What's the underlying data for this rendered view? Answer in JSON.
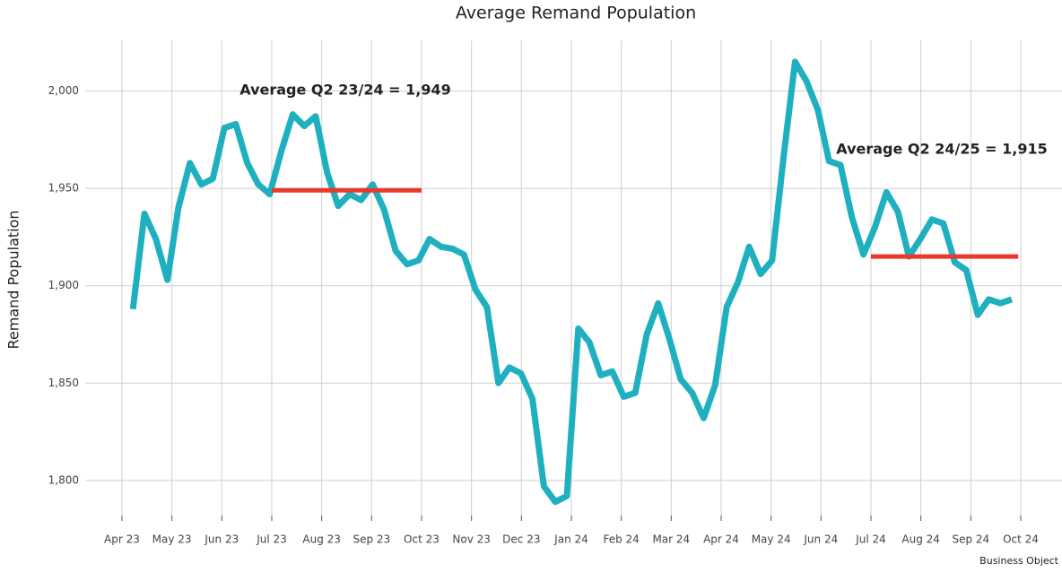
{
  "chart_data": {
    "type": "line",
    "title": "Average Remand Population",
    "y_label": "Remand Population",
    "source": "Business Object",
    "grid": true,
    "xlim": [
      -0.4,
      18.3
    ],
    "xticks": [
      {
        "value": 0,
        "label": "Apr 23"
      },
      {
        "value": 1,
        "label": "May 23"
      },
      {
        "value": 2,
        "label": "Jun 23"
      },
      {
        "value": 3,
        "label": "Jul 23"
      },
      {
        "value": 4,
        "label": "Aug 23"
      },
      {
        "value": 5,
        "label": "Sep 23"
      },
      {
        "value": 6,
        "label": "Oct 23"
      },
      {
        "value": 7,
        "label": "Nov 23"
      },
      {
        "value": 8,
        "label": "Dec 23"
      },
      {
        "value": 9,
        "label": "Jan 24"
      },
      {
        "value": 10,
        "label": "Feb 24"
      },
      {
        "value": 11,
        "label": "Mar 24"
      },
      {
        "value": 12,
        "label": "Apr 24"
      },
      {
        "value": 13,
        "label": "May 24"
      },
      {
        "value": 14,
        "label": "Jun 24"
      },
      {
        "value": 15,
        "label": "Jul 24"
      },
      {
        "value": 16,
        "label": "Aug 24"
      },
      {
        "value": 17,
        "label": "Sep 24"
      },
      {
        "value": 18,
        "label": "Oct 24"
      }
    ],
    "ylim": [
      1782,
      2026
    ],
    "yticks": [
      {
        "value": 1800,
        "label": "1,800"
      },
      {
        "value": 1850,
        "label": "1,850"
      },
      {
        "value": 1900,
        "label": "1,900"
      },
      {
        "value": 1950,
        "label": "1,950"
      },
      {
        "value": 2000,
        "label": "2,000"
      }
    ],
    "series": [
      {
        "color": "#1fb0c0",
        "x": [
          0.22,
          0.45,
          0.68,
          0.91,
          1.13,
          1.36,
          1.59,
          1.82,
          2.05,
          2.28,
          2.51,
          2.73,
          2.96,
          3.19,
          3.42,
          3.65,
          3.88,
          4.11,
          4.33,
          4.56,
          4.79,
          5.02,
          5.25,
          5.48,
          5.71,
          5.94,
          6.16,
          6.39,
          6.62,
          6.85,
          7.08,
          7.31,
          7.54,
          7.76,
          7.99,
          8.22,
          8.45,
          8.68,
          8.91,
          9.14,
          9.36,
          9.59,
          9.82,
          10.05,
          10.28,
          10.51,
          10.74,
          10.96,
          11.19,
          11.42,
          11.65,
          11.88,
          12.11,
          12.34,
          12.56,
          12.79,
          13.02,
          13.25,
          13.48,
          13.71,
          13.94,
          14.16,
          14.39,
          14.62,
          14.85,
          15.08,
          15.31,
          15.54,
          15.76,
          15.99,
          16.22,
          16.45,
          16.68,
          16.91,
          17.14,
          17.36,
          17.59,
          17.82
        ],
        "values": [
          1888,
          1937,
          1924,
          1903,
          1940,
          1963,
          1952,
          1955,
          1981,
          1983,
          1963,
          1952,
          1947,
          1969,
          1988,
          1982,
          1987,
          1958,
          1941,
          1947,
          1944,
          1952,
          1939,
          1918,
          1911,
          1913,
          1924,
          1920,
          1919,
          1916,
          1898,
          1889,
          1850,
          1858,
          1855,
          1842,
          1797,
          1789,
          1792,
          1878,
          1871,
          1854,
          1856,
          1843,
          1845,
          1875,
          1891,
          1873,
          1852,
          1845,
          1832,
          1849,
          1889,
          1902,
          1920,
          1906,
          1913,
          1966,
          2015,
          2005,
          1990,
          1964,
          1962,
          1935,
          1916,
          1930,
          1948,
          1938,
          1915,
          1924,
          1934,
          1932,
          1912,
          1908,
          1885,
          1893,
          1891,
          1893
        ]
      }
    ],
    "reference_lines": [
      {
        "label": "Average Q2 23/24 = 1,949",
        "value": 1949,
        "x": [
          3,
          6
        ],
        "color": "#e8392b"
      },
      {
        "label": "Average Q2 24/25 = 1,915",
        "value": 1915,
        "x": [
          15,
          17.95
        ],
        "color": "#e8392b"
      }
    ]
  }
}
